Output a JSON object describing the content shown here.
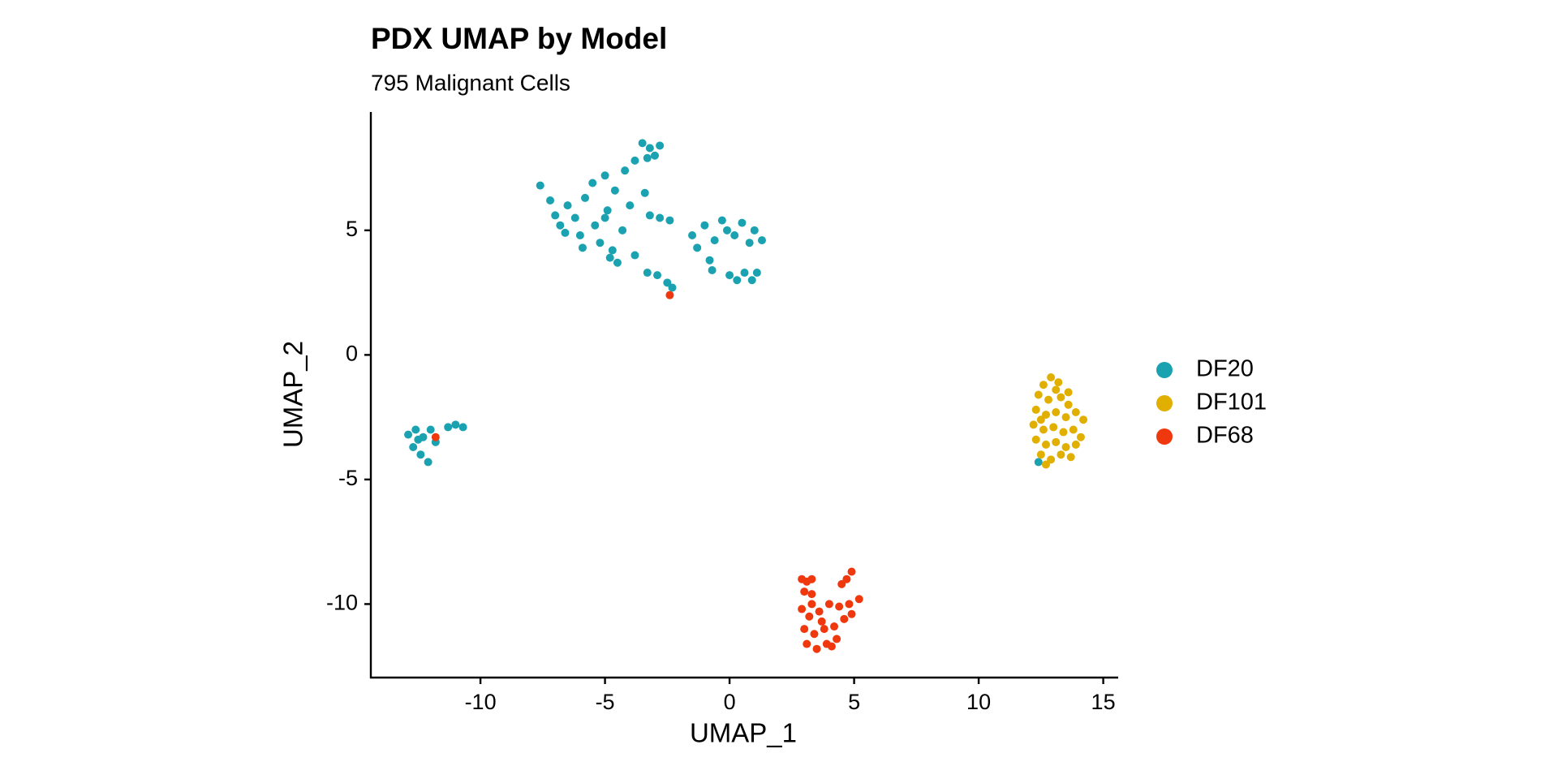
{
  "chart_data": {
    "type": "scatter",
    "title": "PDX UMAP by Model",
    "subtitle": "795 Malignant Cells",
    "x_label": "UMAP_1",
    "y_label": "UMAP_2",
    "xlim": [
      -14.4,
      15.6
    ],
    "ylim": [
      -12.95,
      9.75
    ],
    "xticks": [
      -10,
      -5,
      0,
      5,
      10,
      15
    ],
    "yticks": [
      -10,
      -5,
      0,
      5
    ],
    "grid": false,
    "legend_position": "right",
    "series": [
      {
        "name": "DF20",
        "color": "#1AA2B0",
        "x": [
          -7.6,
          -7.2,
          -7.0,
          -6.8,
          -6.5,
          -6.2,
          -6.0,
          -5.8,
          -5.5,
          -5.4,
          -5.2,
          -5.0,
          -4.9,
          -4.7,
          -4.5,
          -4.8,
          -4.3,
          -4.0,
          -4.2,
          -3.8,
          -3.5,
          -3.2,
          -3.0,
          -2.8,
          -3.3,
          -3.4,
          -3.2,
          -2.8,
          -2.4,
          -3.8,
          -3.3,
          -2.9,
          -2.5,
          -2.3,
          -1.5,
          -1.3,
          -1.0,
          -0.8,
          -0.6,
          -0.3,
          -0.1,
          0.2,
          0.5,
          0.8,
          1.0,
          1.3,
          0.0,
          0.3,
          0.6,
          0.9,
          1.1,
          -0.7,
          -5.9,
          -6.6,
          -5.0,
          -4.6,
          -12.9,
          -12.6,
          -12.3,
          -12.0,
          -12.7,
          -12.4,
          -12.1,
          -11.8,
          -11.0,
          -10.7,
          -11.3,
          -12.5,
          12.4
        ],
        "y": [
          6.8,
          6.2,
          5.6,
          5.2,
          6.0,
          5.5,
          4.8,
          6.3,
          6.9,
          5.2,
          4.5,
          7.2,
          5.8,
          4.2,
          3.7,
          3.9,
          5.0,
          6.0,
          7.4,
          7.8,
          8.5,
          8.3,
          8.0,
          8.4,
          7.9,
          6.5,
          5.6,
          5.5,
          5.4,
          4.0,
          3.3,
          3.2,
          2.9,
          2.7,
          4.8,
          4.3,
          5.2,
          3.8,
          4.6,
          5.4,
          5.0,
          4.8,
          5.3,
          4.5,
          5.0,
          4.6,
          3.2,
          3.0,
          3.3,
          3.0,
          3.3,
          3.4,
          4.3,
          4.9,
          5.5,
          6.6,
          -3.2,
          -3.0,
          -3.3,
          -3.0,
          -3.7,
          -4.0,
          -4.3,
          -3.5,
          -2.8,
          -2.9,
          -2.9,
          -3.4,
          -4.3
        ]
      },
      {
        "name": "DF101",
        "color": "#E1AF00",
        "x": [
          12.6,
          12.9,
          13.2,
          12.4,
          12.8,
          13.3,
          13.6,
          12.3,
          12.7,
          13.1,
          13.5,
          13.9,
          14.2,
          12.2,
          12.6,
          13.0,
          13.4,
          13.8,
          14.1,
          12.3,
          12.7,
          13.1,
          13.5,
          13.9,
          12.5,
          12.9,
          13.3,
          13.7,
          12.7,
          13.1,
          12.5,
          13.6
        ],
        "y": [
          -1.2,
          -0.9,
          -1.1,
          -1.6,
          -1.8,
          -1.7,
          -2.0,
          -2.2,
          -2.4,
          -2.3,
          -2.5,
          -2.3,
          -2.6,
          -2.8,
          -3.0,
          -2.9,
          -3.1,
          -3.0,
          -3.3,
          -3.4,
          -3.6,
          -3.5,
          -3.7,
          -3.6,
          -4.0,
          -4.2,
          -4.0,
          -4.1,
          -4.4,
          -1.4,
          -2.6,
          -1.5
        ]
      },
      {
        "name": "DF68",
        "color": "#F0380F",
        "x": [
          2.9,
          3.1,
          3.3,
          3.0,
          3.3,
          2.9,
          3.2,
          3.6,
          4.0,
          4.4,
          4.8,
          5.2,
          4.9,
          4.7,
          4.5,
          3.0,
          3.4,
          3.8,
          4.2,
          4.6,
          3.1,
          3.5,
          3.9,
          4.3,
          3.7,
          4.1,
          3.3,
          4.9,
          -11.8,
          -2.4
        ],
        "y": [
          -9.0,
          -9.1,
          -9.0,
          -9.5,
          -9.6,
          -10.2,
          -10.5,
          -10.3,
          -10.0,
          -10.1,
          -10.0,
          -9.8,
          -8.7,
          -9.0,
          -9.2,
          -11.0,
          -11.2,
          -11.0,
          -10.9,
          -10.6,
          -11.6,
          -11.8,
          -11.6,
          -11.4,
          -10.7,
          -11.7,
          -10.0,
          -10.4,
          -3.3,
          2.4
        ]
      }
    ]
  }
}
